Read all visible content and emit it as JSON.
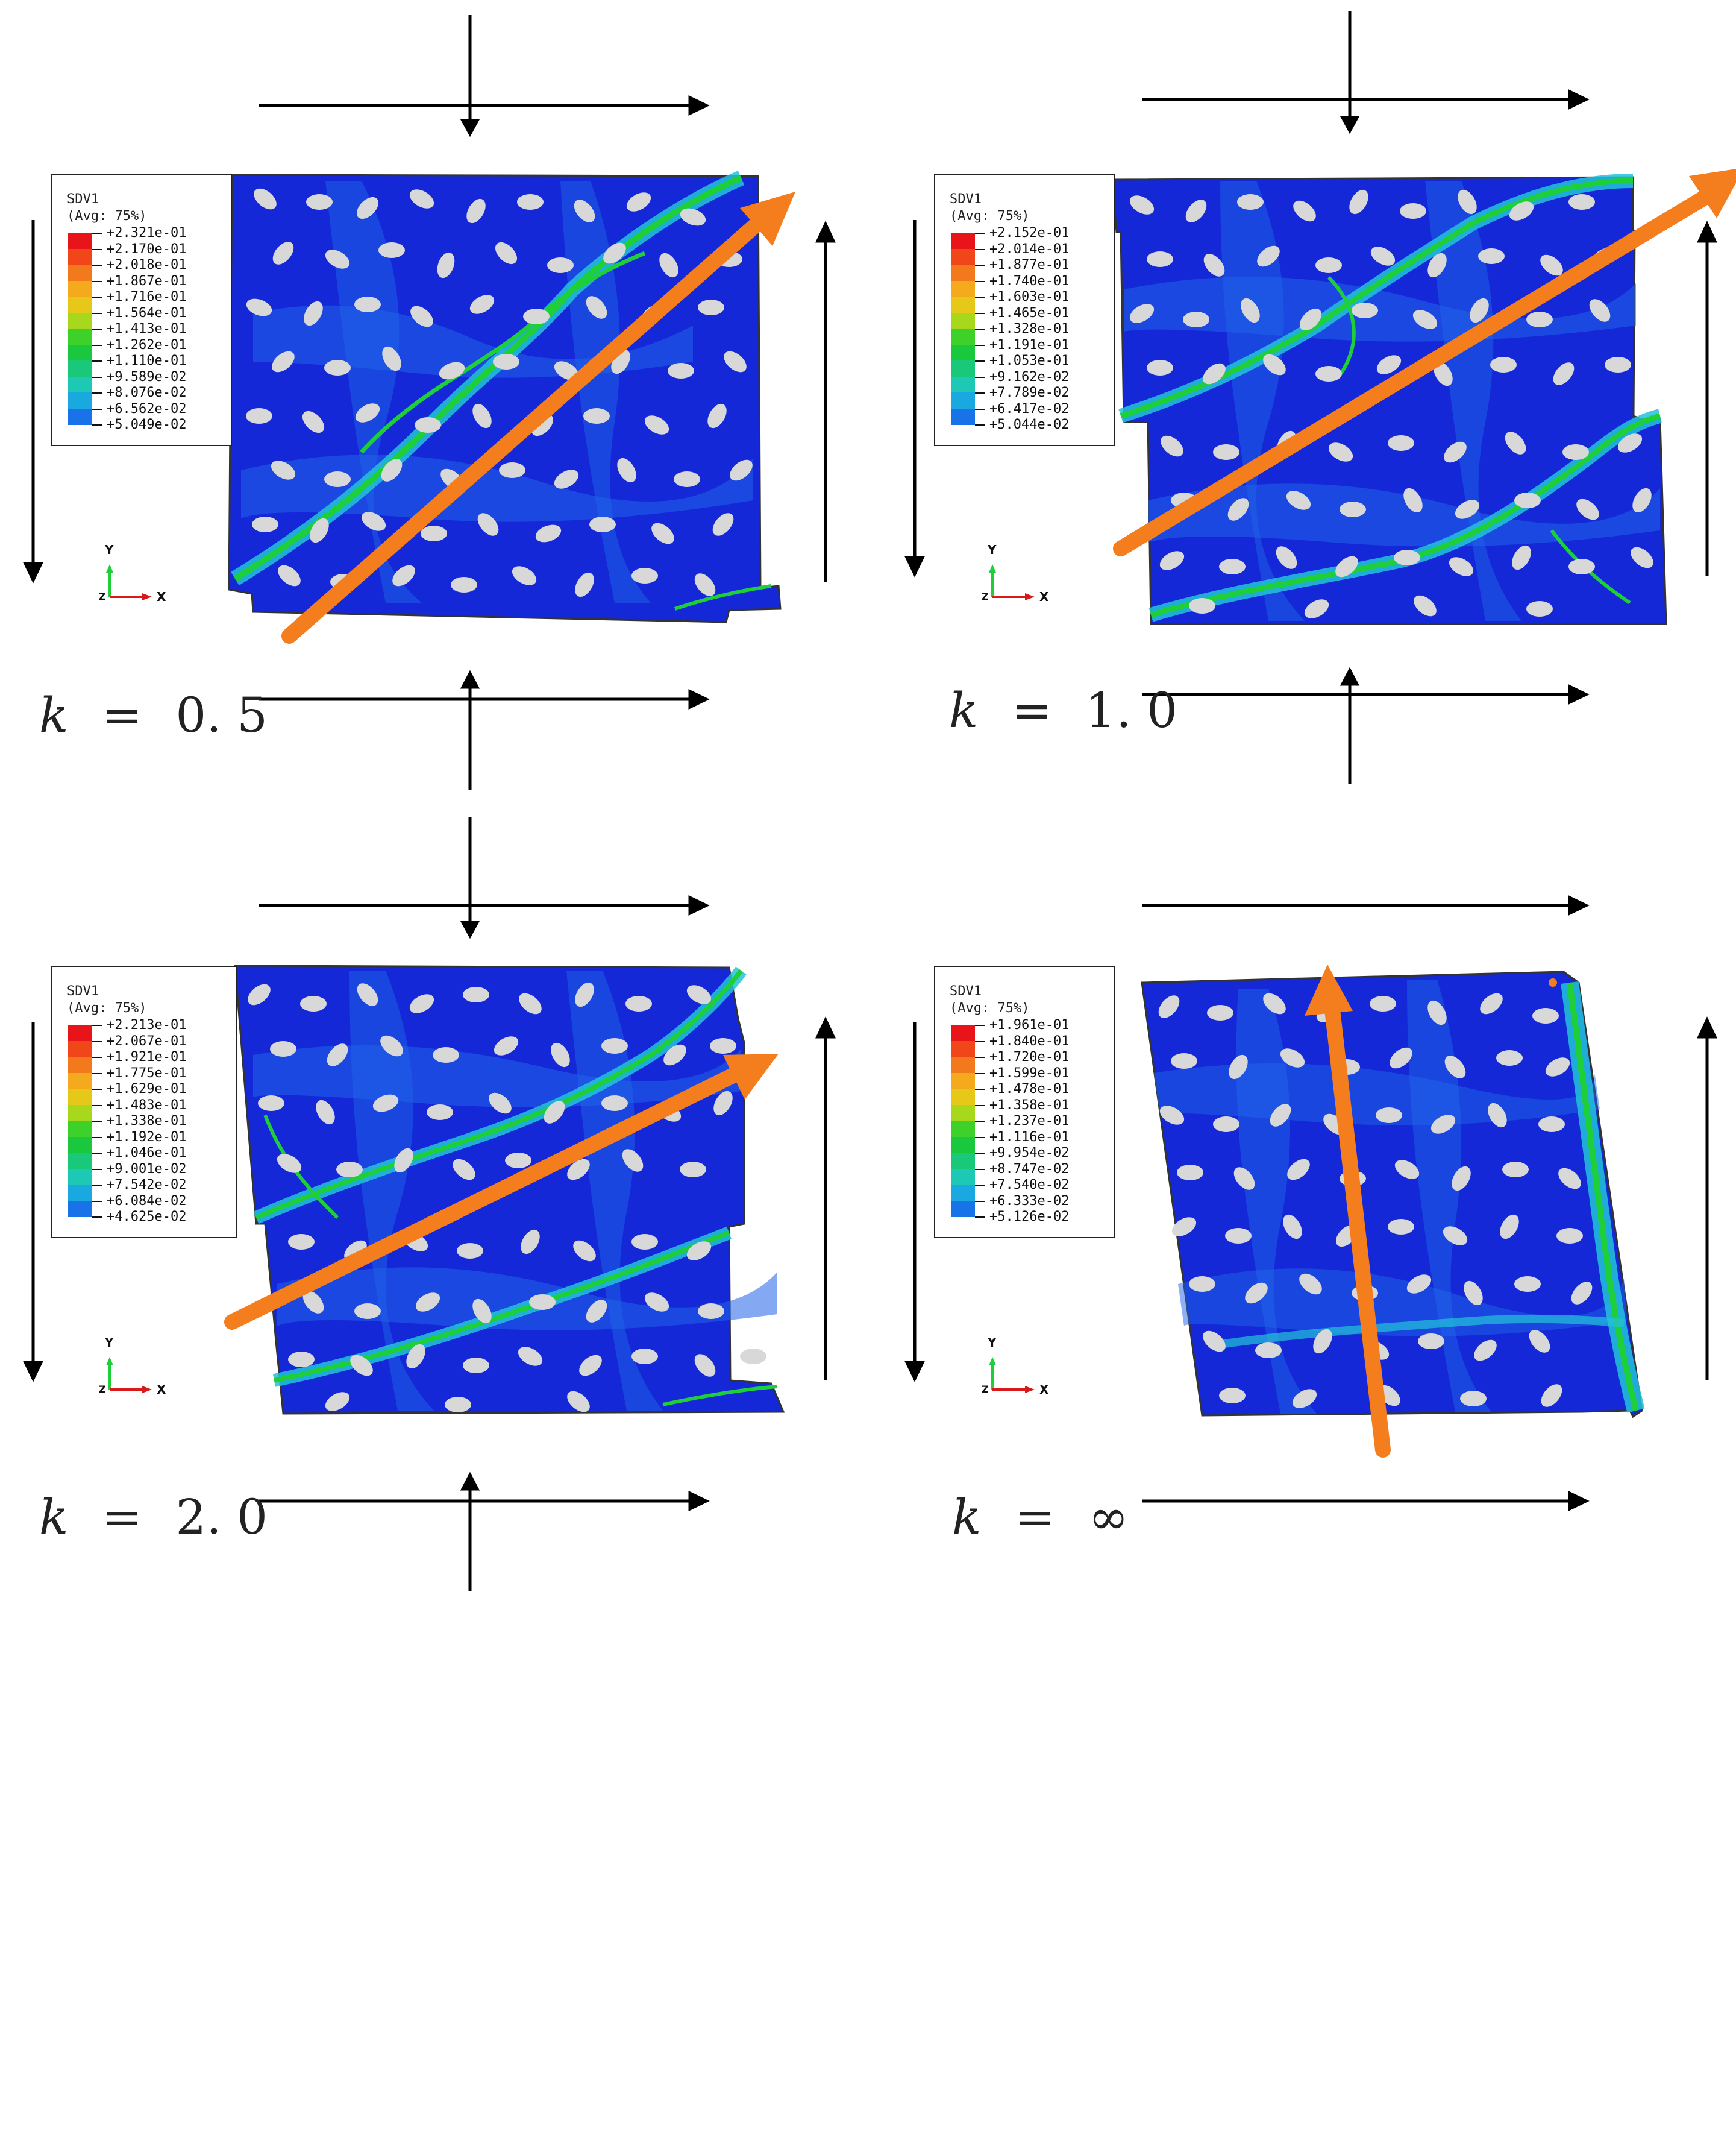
{
  "colors": {
    "contour_base": "#1428d8",
    "contour_mid": "#1f63e8",
    "band_cyan": "#22c3d8",
    "band_green": "#1ecf3a",
    "inclusion": "#d8d8d8",
    "arrow_orange": "#f47d1e",
    "load_arrow": "#000000"
  },
  "legend_palette": [
    "#e8141a",
    "#f0461a",
    "#f37a1c",
    "#f5a91c",
    "#e6c918",
    "#a8d81c",
    "#3ed12a",
    "#19c83c",
    "#19c878",
    "#1dc8b4",
    "#1aa8e0",
    "#1873e8",
    "#1446dc",
    "#1426d0"
  ],
  "panels": [
    {
      "id": "k05",
      "k_var": "k",
      "k_eq": "=",
      "k_val": "0. 5",
      "legend": {
        "title": "SDV1",
        "subtitle": "(Avg: 75%)",
        "values": [
          "+2.321e-01",
          "+2.170e-01",
          "+2.018e-01",
          "+1.867e-01",
          "+1.716e-01",
          "+1.564e-01",
          "+1.413e-01",
          "+1.262e-01",
          "+1.110e-01",
          "+9.589e-02",
          "+8.076e-02",
          "+6.562e-02",
          "+5.049e-02"
        ]
      },
      "band_direction": "diagonal-up-right",
      "triad": {
        "y": "Y",
        "x": "X",
        "z": "Z"
      }
    },
    {
      "id": "k10",
      "k_var": "k",
      "k_eq": "=",
      "k_val": "1. 0",
      "legend": {
        "title": "SDV1",
        "subtitle": "(Avg: 75%)",
        "values": [
          "+2.152e-01",
          "+2.014e-01",
          "+1.877e-01",
          "+1.740e-01",
          "+1.603e-01",
          "+1.465e-01",
          "+1.328e-01",
          "+1.191e-01",
          "+1.053e-01",
          "+9.162e-02",
          "+7.789e-02",
          "+6.417e-02",
          "+5.044e-02"
        ]
      },
      "band_direction": "diagonal-up-right",
      "triad": {
        "y": "Y",
        "x": "X",
        "z": "Z"
      }
    },
    {
      "id": "k20",
      "k_var": "k",
      "k_eq": "=",
      "k_val": "2. 0",
      "legend": {
        "title": "SDV1",
        "subtitle": "(Avg: 75%)",
        "values": [
          "+2.213e-01",
          "+2.067e-01",
          "+1.921e-01",
          "+1.775e-01",
          "+1.629e-01",
          "+1.483e-01",
          "+1.338e-01",
          "+1.192e-01",
          "+1.046e-01",
          "+9.001e-02",
          "+7.542e-02",
          "+6.084e-02",
          "+4.625e-02"
        ]
      },
      "band_direction": "shallow-up-right",
      "triad": {
        "y": "Y",
        "x": "X",
        "z": "Z"
      }
    },
    {
      "id": "kinf",
      "k_var": "k",
      "k_eq": "=",
      "k_val": "∞",
      "legend": {
        "title": "SDV1",
        "subtitle": "(Avg: 75%)",
        "values": [
          "+1.961e-01",
          "+1.840e-01",
          "+1.720e-01",
          "+1.599e-01",
          "+1.478e-01",
          "+1.358e-01",
          "+1.237e-01",
          "+1.116e-01",
          "+9.954e-02",
          "+8.747e-02",
          "+7.540e-02",
          "+6.333e-02",
          "+5.126e-02"
        ]
      },
      "band_direction": "near-vertical",
      "triad": {
        "y": "Y",
        "x": "X",
        "z": "Z"
      }
    }
  ]
}
